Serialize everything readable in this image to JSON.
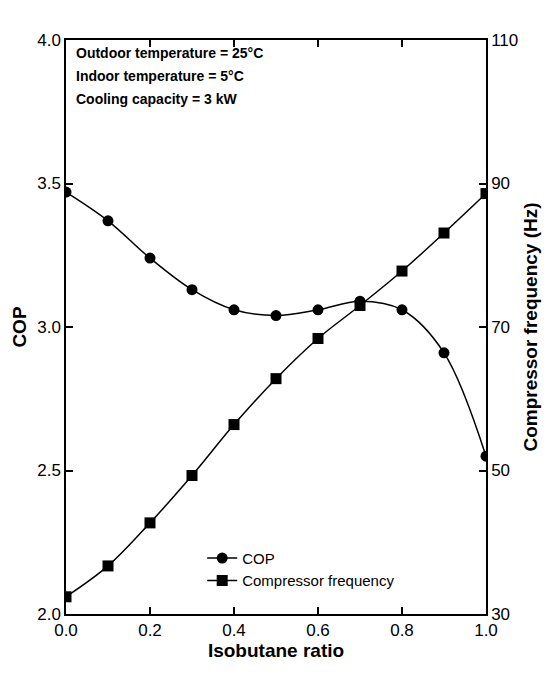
{
  "chart_data": {
    "type": "line",
    "x_label": "Isobutane ratio",
    "y_label": "COP",
    "y2_label": "Compressor frequency (Hz)",
    "annotations": [
      "Outdoor temperature = 25°C",
      "Indoor temperature = 5°C",
      "Cooling capacity = 3 kW"
    ],
    "x": [
      0.0,
      0.1,
      0.2,
      0.3,
      0.4,
      0.5,
      0.6,
      0.7,
      0.8,
      0.9,
      1.0
    ],
    "series": [
      {
        "name": "COP",
        "color": "#000000",
        "marker": "circle",
        "line_style": "solid",
        "values": [
          3.47,
          3.37,
          3.24,
          3.13,
          3.06,
          3.04,
          3.06,
          3.09,
          3.06,
          2.91,
          2.55
        ]
      },
      {
        "name": "Compressor frequency",
        "color": "#000000",
        "marker": "square",
        "line_style": "solid",
        "axis": "y2",
        "values": [
          32.4,
          36.7,
          42.7,
          49.3,
          56.4,
          62.8,
          68.4,
          73.0,
          77.8,
          83.1,
          88.6
        ]
      }
    ],
    "xlim": [
      0.0,
      1.0
    ],
    "xticks": [
      {
        "value": 0.0,
        "label": "0.0"
      },
      {
        "value": 0.2,
        "label": "0.2"
      },
      {
        "value": 0.4,
        "label": "0.4"
      },
      {
        "value": 0.6,
        "label": "0.6"
      },
      {
        "value": 0.8,
        "label": "0.8"
      },
      {
        "value": 1.0,
        "label": "1.0"
      }
    ],
    "ylim": [
      2.0,
      4.0
    ],
    "yticks": [
      {
        "value": 2.0,
        "label": "2.0"
      },
      {
        "value": 2.5,
        "label": "2.5"
      },
      {
        "value": 3.0,
        "label": "3.0"
      },
      {
        "value": 3.5,
        "label": "3.5"
      },
      {
        "value": 4.0,
        "label": "4.0"
      }
    ],
    "y2lim": [
      30,
      110
    ],
    "y2ticks": [
      30,
      50,
      70,
      90,
      110
    ],
    "grid": false,
    "legend": "lower center"
  }
}
